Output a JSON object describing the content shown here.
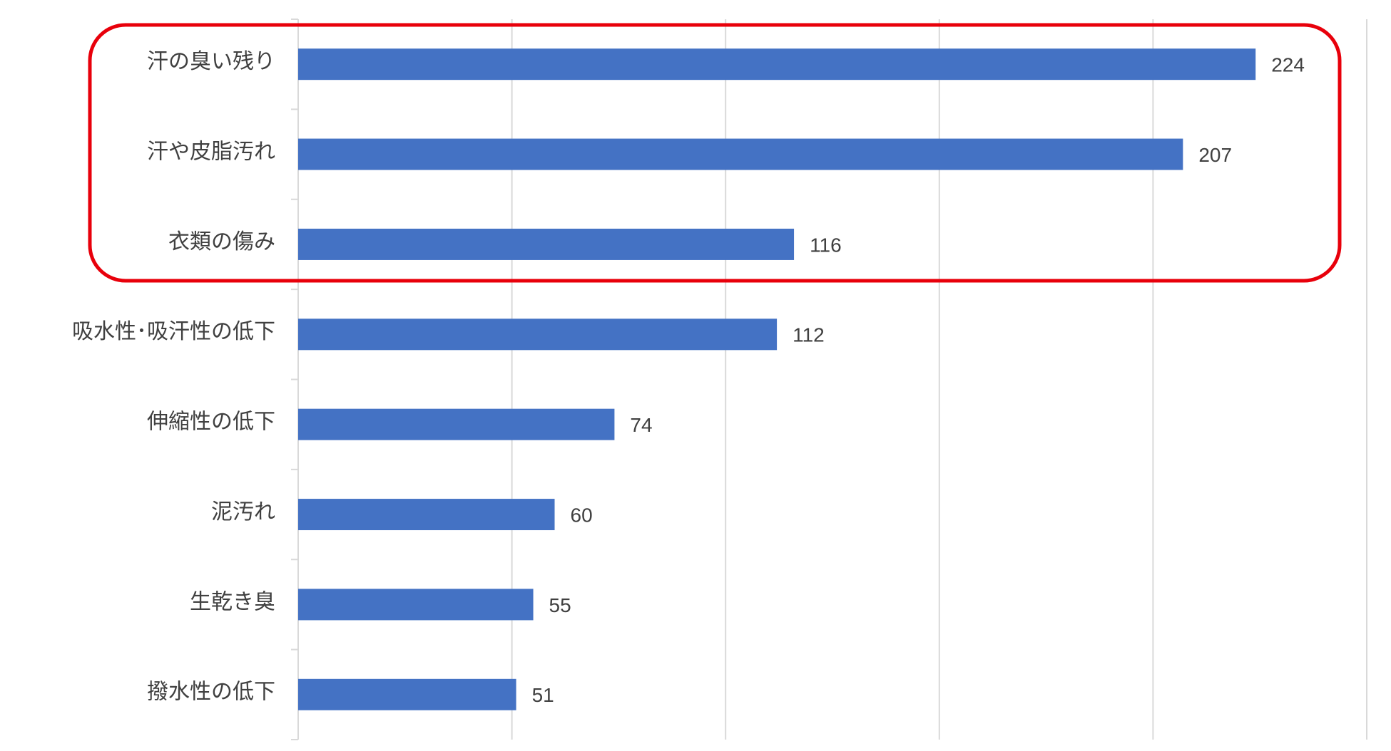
{
  "chart_data": {
    "type": "hbar",
    "categories": [
      "汗の臭い残り",
      "汗や皮脂汚れ",
      "衣類の傷み",
      "吸水性･吸汗性の低下",
      "伸縮性の低下",
      "泥汚れ",
      "生乾き臭",
      "撥水性の低下"
    ],
    "values": [
      224,
      207,
      116,
      112,
      74,
      60,
      55,
      51
    ],
    "color": "#4472c4",
    "xlim": [
      0,
      250
    ],
    "xticks": [
      0,
      50,
      100,
      150,
      200,
      250
    ],
    "grid": true
  }
}
